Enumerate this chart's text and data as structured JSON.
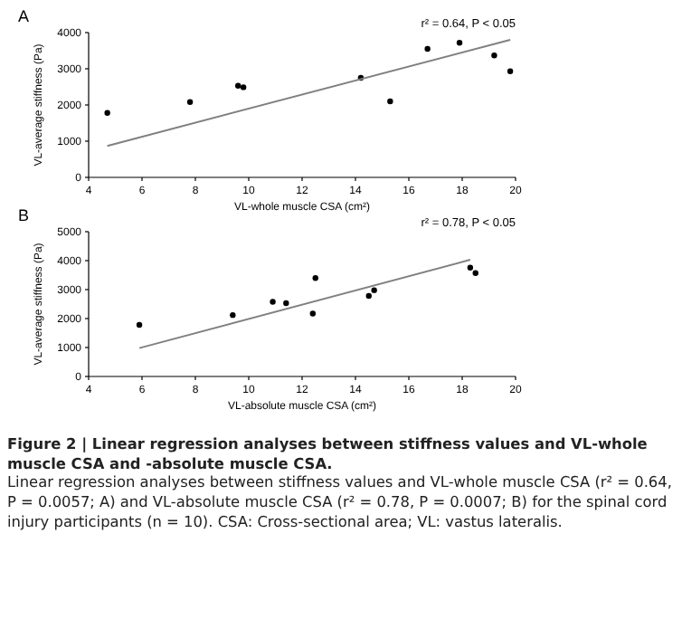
{
  "chart_data": [
    {
      "type": "scatter",
      "title": "A",
      "xlabel": "VL-whole muscle CSA (cm²)",
      "ylabel": "VL-average stiffness (Pa)",
      "xlim": [
        4,
        20
      ],
      "xticks": [
        4,
        6,
        8,
        10,
        12,
        14,
        16,
        18,
        20
      ],
      "ylim": [
        0,
        4000
      ],
      "yticks": [
        0,
        1000,
        2000,
        3000,
        4000
      ],
      "annotations": [
        "r² = 0.64, P < 0.05"
      ],
      "grid": false,
      "series": [
        {
          "type": "scatter",
          "marker": "circle",
          "color": "#000000",
          "x": [
            4.7,
            7.8,
            9.6,
            9.8,
            14.2,
            15.3,
            16.7,
            17.9,
            19.2,
            19.8
          ],
          "values": [
            1780,
            2080,
            2530,
            2490,
            2750,
            2100,
            3550,
            3720,
            3370,
            2930
          ]
        },
        {
          "type": "line",
          "color": "#808080",
          "x": [
            4.7,
            19.8
          ],
          "values": [
            870,
            3800
          ]
        }
      ]
    },
    {
      "type": "scatter",
      "title": "B",
      "xlabel": "VL-absolute muscle CSA (cm²)",
      "ylabel": "VL-average stiffness (Pa)",
      "xlim": [
        4,
        20
      ],
      "xticks": [
        4,
        6,
        8,
        10,
        12,
        14,
        16,
        18,
        20
      ],
      "ylim": [
        0,
        5000
      ],
      "yticks": [
        0,
        1000,
        2000,
        3000,
        4000,
        5000
      ],
      "annotations": [
        "r² = 0.78, P < 0.05"
      ],
      "grid": false,
      "series": [
        {
          "type": "scatter",
          "marker": "circle",
          "color": "#000000",
          "x": [
            5.9,
            9.4,
            10.9,
            11.4,
            12.4,
            12.5,
            14.5,
            14.7,
            18.3,
            18.5
          ],
          "values": [
            1780,
            2120,
            2580,
            2530,
            2170,
            3400,
            2780,
            2980,
            3760,
            3570
          ]
        },
        {
          "type": "line",
          "color": "#808080",
          "x": [
            5.9,
            18.3
          ],
          "values": [
            980,
            4030
          ]
        }
      ]
    },
    {
      "type": "other",
      "annotations": [
        "Figure 2  |  Linear regression analyses between stiffness values and VL-whole muscle CSA and -absolute muscle CSA.",
        "Linear regression analyses between stiffness values and VL-whole muscle CSA (r² = 0.64, P = 0.0057; A) and VL-absolute muscle CSA (r² = 0.78, P = 0.0007; B) for the spinal cord injury participants (n = 10). CSA: Cross-sectional area; VL: vastus lateralis."
      ]
    }
  ]
}
